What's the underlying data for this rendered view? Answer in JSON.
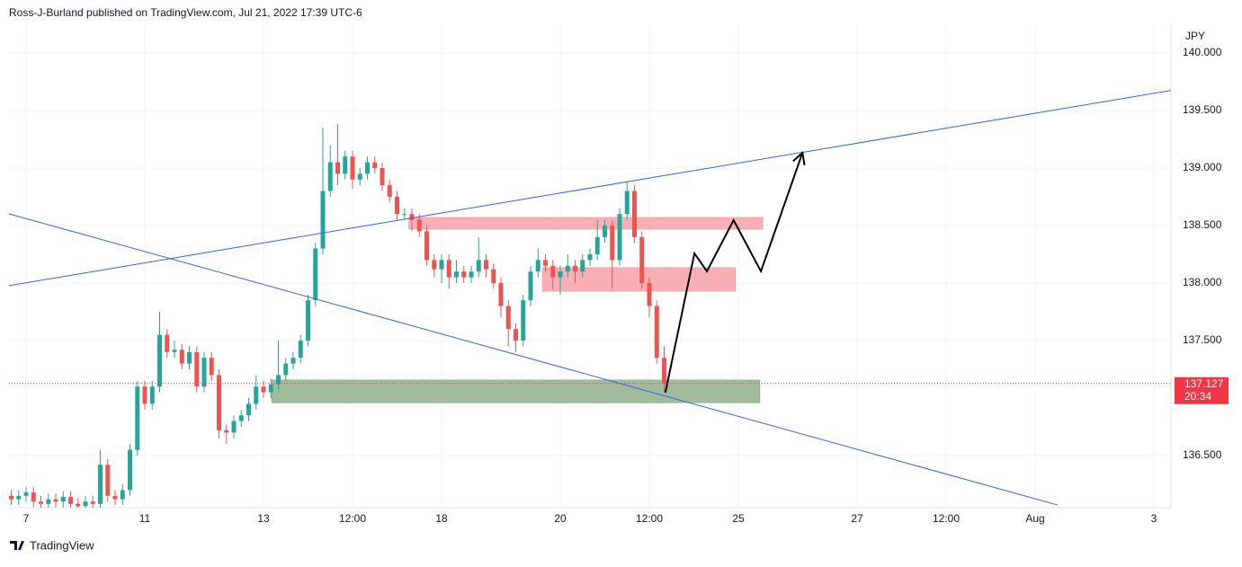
{
  "header": "Ross-J-Burland published on TradingView.com, Jul 21, 2022 17:39 UTC-6",
  "footer": "TradingView",
  "chart_data": {
    "type": "candlestick",
    "currency": "JPY",
    "x": [
      -0.25,
      -0.125,
      0,
      0.125,
      0.25,
      0.375,
      0.5,
      0.625,
      0.75,
      0.875,
      1,
      1.125,
      1.25,
      1.375,
      1.5,
      1.625,
      1.75,
      1.875,
      2,
      2.125,
      2.25,
      2.375,
      2.5,
      2.625,
      2.75,
      2.875,
      3,
      3.125,
      3.25,
      3.375,
      3.5,
      3.625,
      3.75,
      3.875,
      4,
      4.125,
      4.25,
      4.375,
      4.5,
      4.625,
      4.75,
      4.875,
      5,
      5.125,
      5.25,
      5.375,
      5.5,
      5.625,
      5.75,
      5.875,
      6,
      6.125,
      6.25,
      6.375,
      6.5,
      6.625,
      6.75,
      6.875,
      7,
      7.125,
      7.25,
      7.375,
      7.5,
      7.625,
      7.75,
      7.875,
      8,
      8.125,
      8.25,
      8.375,
      8.5,
      8.625,
      8.75,
      8.875,
      9,
      9.125,
      9.25,
      9.375,
      9.5,
      9.625,
      9.75,
      9.875,
      10,
      10.125,
      10.25,
      10.375,
      10.5,
      10.625,
      10.75
    ],
    "open": [
      136.15,
      136.12,
      136.15,
      136.18,
      136.1,
      136.08,
      136.12,
      136.1,
      136.14,
      136.08,
      136.06,
      136.1,
      136.08,
      136.42,
      136.15,
      136.12,
      136.2,
      136.55,
      137.1,
      136.95,
      137.1,
      137.55,
      137.4,
      137.42,
      137.3,
      137.4,
      137.1,
      137.35,
      137.2,
      136.72,
      136.7,
      136.8,
      136.85,
      136.95,
      137.1,
      137.05,
      137.12,
      137.2,
      137.3,
      137.35,
      137.5,
      137.85,
      138.3,
      138.8,
      139.05,
      138.95,
      139.1,
      138.9,
      138.95,
      139.05,
      139.0,
      138.85,
      138.75,
      138.6,
      138.6,
      138.55,
      138.45,
      138.2,
      138.12,
      138.2,
      138.05,
      138.1,
      138.05,
      138.1,
      138.2,
      138.12,
      138.0,
      137.8,
      137.6,
      137.5,
      137.85,
      138.1,
      138.2,
      138.15,
      138.05,
      138.1,
      138.15,
      138.1,
      138.2,
      138.25,
      138.4,
      138.5,
      138.2,
      138.6,
      138.8,
      138.4,
      138.0,
      137.8,
      137.35
    ],
    "high": [
      136.2,
      136.2,
      136.23,
      136.23,
      136.15,
      136.17,
      136.17,
      136.19,
      136.19,
      136.13,
      136.15,
      136.15,
      136.55,
      136.47,
      136.2,
      136.25,
      136.6,
      137.15,
      137.15,
      137.15,
      137.75,
      137.6,
      137.5,
      137.47,
      137.45,
      137.45,
      137.4,
      137.4,
      137.25,
      136.77,
      136.85,
      136.9,
      137.0,
      137.2,
      137.15,
      137.17,
      137.5,
      137.35,
      137.4,
      137.55,
      137.9,
      138.35,
      139.35,
      139.2,
      139.38,
      139.15,
      139.15,
      139.0,
      139.1,
      139.1,
      139.05,
      138.9,
      138.8,
      138.65,
      138.65,
      138.6,
      138.5,
      138.25,
      138.25,
      138.25,
      138.2,
      138.15,
      138.15,
      138.4,
      138.25,
      138.17,
      138.05,
      137.85,
      137.65,
      137.9,
      138.15,
      138.3,
      138.25,
      138.2,
      138.15,
      138.25,
      138.2,
      138.25,
      138.3,
      138.55,
      138.55,
      138.55,
      138.65,
      138.88,
      138.85,
      138.45,
      138.05,
      137.85,
      137.45
    ],
    "low": [
      136.07,
      136.07,
      136.1,
      136.05,
      136.03,
      136.03,
      136.05,
      136.05,
      136.03,
      136.01,
      136.01,
      136.03,
      136.03,
      136.1,
      136.07,
      136.07,
      136.15,
      136.5,
      136.9,
      136.9,
      137.05,
      137.35,
      137.35,
      137.25,
      137.25,
      137.05,
      137.05,
      137.15,
      136.65,
      136.6,
      136.65,
      136.75,
      136.8,
      136.9,
      137.0,
      137.0,
      137.07,
      137.15,
      137.25,
      137.3,
      137.45,
      137.8,
      138.25,
      138.75,
      138.85,
      138.9,
      138.82,
      138.85,
      138.9,
      138.95,
      138.8,
      138.7,
      138.55,
      138.55,
      138.45,
      138.4,
      138.15,
      138.05,
      138.0,
      137.95,
      138.0,
      138.0,
      138.0,
      138.05,
      138.05,
      137.95,
      137.7,
      137.45,
      137.4,
      137.45,
      137.8,
      138.05,
      138.1,
      137.95,
      137.9,
      138.05,
      138.0,
      138.05,
      138.15,
      138.2,
      138.35,
      137.95,
      138.15,
      138.55,
      138.35,
      137.95,
      137.7,
      137.3,
      137.05
    ],
    "close": [
      136.12,
      136.15,
      136.18,
      136.1,
      136.08,
      136.12,
      136.1,
      136.14,
      136.08,
      136.06,
      136.1,
      136.08,
      136.42,
      136.15,
      136.12,
      136.2,
      136.55,
      137.1,
      136.95,
      137.1,
      137.55,
      137.4,
      137.42,
      137.3,
      137.4,
      137.1,
      137.35,
      137.2,
      136.72,
      136.7,
      136.8,
      136.85,
      136.95,
      137.1,
      137.05,
      137.12,
      137.2,
      137.3,
      137.35,
      137.5,
      137.85,
      138.3,
      138.8,
      139.05,
      138.95,
      139.1,
      138.9,
      138.95,
      139.05,
      139.0,
      138.85,
      138.75,
      138.6,
      138.6,
      138.55,
      138.45,
      138.2,
      138.12,
      138.2,
      138.05,
      138.1,
      138.05,
      138.1,
      138.2,
      138.12,
      138.0,
      137.8,
      137.6,
      137.5,
      137.85,
      138.1,
      138.2,
      138.15,
      138.05,
      138.1,
      138.15,
      138.1,
      138.2,
      138.25,
      138.4,
      138.5,
      138.2,
      138.6,
      138.8,
      138.4,
      138.0,
      137.8,
      137.35,
      137.127
    ],
    "up_color": "#26a69a",
    "down_color": "#ef5350",
    "xlim": [
      -0.288,
      19.288
    ],
    "ylim": [
      136.047,
      140.242
    ],
    "xticks": [
      {
        "value": 0,
        "label": "7"
      },
      {
        "value": 2,
        "label": "11"
      },
      {
        "value": 4,
        "label": "13"
      },
      {
        "value": 5.5,
        "label": "12:00"
      },
      {
        "value": 7,
        "label": "18"
      },
      {
        "value": 9,
        "label": "20"
      },
      {
        "value": 10.5,
        "label": "12:00"
      },
      {
        "value": 12,
        "label": "25"
      },
      {
        "value": 14,
        "label": "27"
      },
      {
        "value": 15.5,
        "label": "12:00"
      },
      {
        "value": 17,
        "label": "Aug"
      },
      {
        "value": 19,
        "label": "3"
      }
    ],
    "yticks": [
      {
        "value": 136.5,
        "label": "136.500"
      },
      {
        "value": 137.5,
        "label": "137.500"
      },
      {
        "value": 138,
        "label": "138.000"
      },
      {
        "value": 138.5,
        "label": "138.500"
      },
      {
        "value": 139,
        "label": "139.000"
      },
      {
        "value": 139.5,
        "label": "139.500"
      },
      {
        "value": 140,
        "label": "140.000"
      }
    ],
    "grid": true,
    "last_price": {
      "value": 137.127,
      "label": "137.127",
      "color": "#f23645"
    },
    "countdown": "20:34",
    "trendlines": [
      {
        "x": [
          -0.288,
          19.35
        ],
        "y": [
          137.977,
          139.68
        ],
        "color": "#2962ff"
      },
      {
        "x": [
          -0.288,
          17.38
        ],
        "y": [
          138.602,
          136.07
        ],
        "color": "#2962ff"
      }
    ],
    "zones": [
      {
        "x": [
          6.45,
          12.41
        ],
        "y": [
          138.57,
          138.469
        ],
        "color": "#f7a1a8"
      },
      {
        "x": [
          8.7,
          11.95
        ],
        "y": [
          138.133,
          137.93
        ],
        "color": "#f7a1a8"
      },
      {
        "x": [
          4.14,
          12.36
        ],
        "y": [
          137.156,
          136.961
        ],
        "color": "#8fb089"
      }
    ],
    "projection": {
      "x": [
        10.77,
        11.26,
        11.47,
        11.92,
        12.38,
        13.08
      ],
      "y": [
        137.047,
        138.258,
        138.102,
        138.547,
        138.102,
        139.133
      ],
      "color": "#000000"
    }
  }
}
